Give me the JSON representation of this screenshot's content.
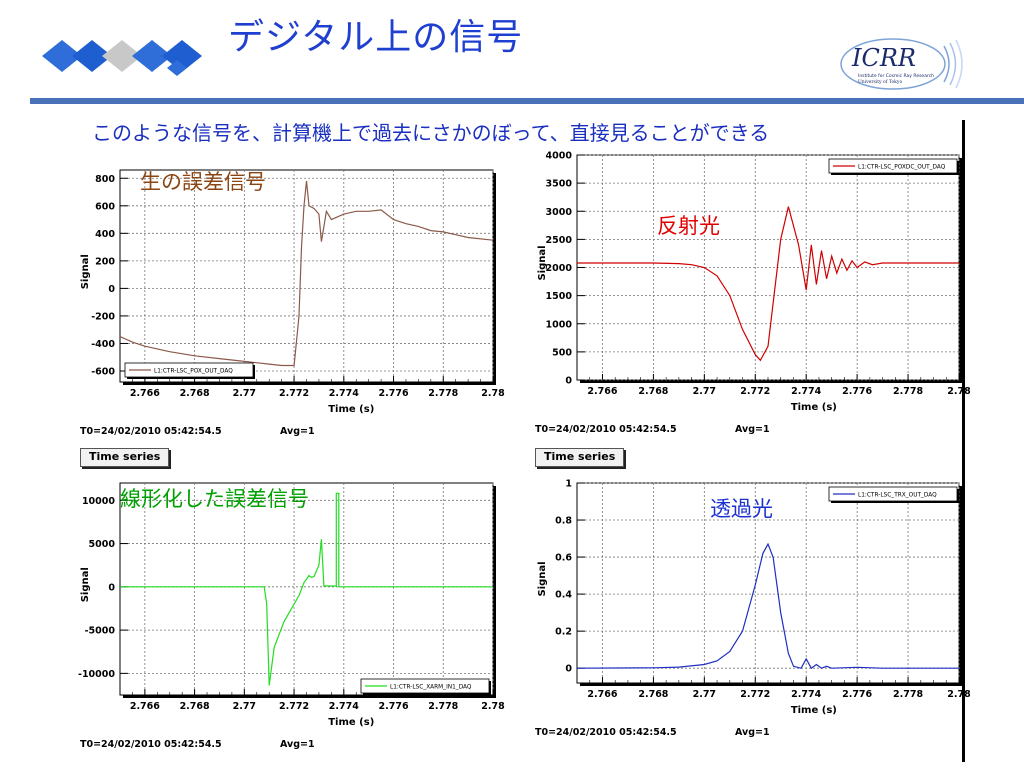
{
  "slide": {
    "title": "デジタル上の信号",
    "subtitle": "このような信号を、計算機上で過去にさかのぼって、直接見ることができる"
  },
  "logo": {
    "text": "ICRR",
    "line1": "Institute for Cosmic Ray Research",
    "line2": "University of Tokyo"
  },
  "colors": {
    "title": "#1f3fd0",
    "rule": "#4a72b8",
    "brown": "#8b5a4a",
    "red": "#d00000",
    "green": "#00cc00",
    "blue": "#2030c0"
  },
  "chart_data": [
    {
      "type": "line",
      "overlay_label": "生の誤差信号",
      "overlay_color": "#8b4513",
      "xlabel": "Time (s)",
      "ylabel": "Signal",
      "xlim": [
        2.765,
        2.78
      ],
      "ylim": [
        -680,
        860
      ],
      "x_ticks": [
        "2.766",
        "2.768",
        "2.77",
        "2.772",
        "2.774",
        "2.776",
        "2.778",
        "2.78"
      ],
      "y_ticks": [
        "800",
        "600",
        "400",
        "200",
        "0",
        "-200",
        "-400",
        "-600"
      ],
      "legend": "L1:CTR-LSC_POX_OUT_DAQ",
      "legend_position": "bottom-left",
      "grid": true,
      "footer_t0": "T0=24/02/2010 05:42:54.5",
      "footer_avg": "Avg=1",
      "series": [
        {
          "color": "#8b5a4a",
          "x": [
            2.765,
            2.7655,
            2.766,
            2.767,
            2.768,
            2.769,
            2.77,
            2.771,
            2.7715,
            2.772,
            2.7722,
            2.7723,
            2.7724,
            2.7725,
            2.7726,
            2.7728,
            2.773,
            2.7731,
            2.7733,
            2.7735,
            2.774,
            2.7745,
            2.775,
            2.7755,
            2.776,
            2.7765,
            2.777,
            2.7775,
            2.778,
            2.7785,
            2.779,
            2.78
          ],
          "y": [
            -350,
            -390,
            -420,
            -460,
            -490,
            -510,
            -530,
            -550,
            -560,
            -560,
            -200,
            300,
            600,
            780,
            600,
            580,
            540,
            340,
            560,
            500,
            540,
            560,
            560,
            570,
            500,
            470,
            450,
            420,
            410,
            390,
            370,
            350
          ]
        }
      ]
    },
    {
      "type": "line",
      "overlay_label": "反射光",
      "overlay_color": "#e00000",
      "xlabel": "Time (s)",
      "ylabel": "Signal",
      "xlim": [
        2.765,
        2.78
      ],
      "ylim": [
        0,
        4000
      ],
      "x_ticks": [
        "2.766",
        "2.768",
        "2.77",
        "2.772",
        "2.774",
        "2.776",
        "2.778",
        "2.78"
      ],
      "y_ticks": [
        "4000",
        "3500",
        "3000",
        "2500",
        "2000",
        "1500",
        "1000",
        "500",
        "0"
      ],
      "legend": "L1:CTR-LSC_POXDC_OUT_DAQ",
      "legend_position": "top-right",
      "grid": true,
      "footer_t0": "T0=24/02/2010 05:42:54.5",
      "footer_avg": "Avg=1",
      "series": [
        {
          "color": "#d00000",
          "x": [
            2.765,
            2.768,
            2.769,
            2.7695,
            2.77,
            2.7705,
            2.771,
            2.7715,
            2.772,
            2.7722,
            2.7725,
            2.773,
            2.7733,
            2.7737,
            2.774,
            2.7742,
            2.7744,
            2.7746,
            2.7748,
            2.775,
            2.7752,
            2.7754,
            2.7756,
            2.7758,
            2.776,
            2.7763,
            2.7766,
            2.777,
            2.778,
            2.779,
            2.78
          ],
          "y": [
            2080,
            2080,
            2070,
            2050,
            2000,
            1850,
            1500,
            900,
            450,
            350,
            600,
            2500,
            3080,
            2400,
            1600,
            2400,
            1700,
            2300,
            1800,
            2200,
            1900,
            2150,
            1950,
            2120,
            2000,
            2100,
            2050,
            2080,
            2080,
            2080,
            2080
          ]
        }
      ]
    },
    {
      "type": "line",
      "overlay_label": "線形化した誤差信号",
      "overlay_color": "#00a000",
      "xlabel": "Time (s)",
      "ylabel": "Signal",
      "xlim": [
        2.765,
        2.78
      ],
      "ylim": [
        -12500,
        12000
      ],
      "x_ticks": [
        "2.766",
        "2.768",
        "2.77",
        "2.772",
        "2.774",
        "2.776",
        "2.778",
        "2.78"
      ],
      "y_ticks": [
        "10000",
        "5000",
        "0",
        "-5000",
        "-10000"
      ],
      "legend": "L1:CTR-LSC_XARM_IN1_DAQ",
      "legend_position": "bottom-right",
      "grid": true,
      "footer_t0": "T0=24/02/2010 05:42:54.5",
      "footer_avg": "Avg=1",
      "series": [
        {
          "color": "#22dd22",
          "x": [
            2.765,
            2.77,
            2.7708,
            2.7709,
            2.771,
            2.7712,
            2.7716,
            2.772,
            2.7722,
            2.7724,
            2.7726,
            2.7727,
            2.7728,
            2.773,
            2.7731,
            2.7732,
            2.7733,
            2.7734,
            2.7735,
            2.7736,
            2.7737,
            2.7737,
            2.7738,
            2.7738,
            2.774,
            2.78
          ],
          "y": [
            0,
            0,
            0,
            -2000,
            -11400,
            -7000,
            -4000,
            -2000,
            -1000,
            500,
            1300,
            1100,
            1200,
            2500,
            5500,
            100,
            100,
            100,
            100,
            100,
            100,
            10800,
            10800,
            0,
            0,
            0
          ]
        }
      ]
    },
    {
      "type": "line",
      "overlay_label": "透過光",
      "overlay_color": "#1a30d0",
      "xlabel": "Time (s)",
      "ylabel": "Signal",
      "xlim": [
        2.765,
        2.78
      ],
      "ylim": [
        -0.08,
        1.0
      ],
      "x_ticks": [
        "2.766",
        "2.768",
        "2.77",
        "2.772",
        "2.774",
        "2.776",
        "2.778",
        "2.78"
      ],
      "y_ticks": [
        "1",
        "0.8",
        "0.6",
        "0.4",
        "0.2",
        "0"
      ],
      "legend": "L1:CTR-LSC_TRX_OUT_DAQ",
      "legend_position": "top-right",
      "grid": true,
      "footer_t0": "T0=24/02/2010 05:42:54.5",
      "footer_avg": "Avg=1",
      "series": [
        {
          "color": "#2030c0",
          "x": [
            2.765,
            2.768,
            2.769,
            2.77,
            2.7705,
            2.771,
            2.7715,
            2.772,
            2.7723,
            2.7725,
            2.7727,
            2.773,
            2.7733,
            2.7735,
            2.7738,
            2.774,
            2.7742,
            2.7744,
            2.7746,
            2.7748,
            2.775,
            2.776,
            2.777,
            2.778,
            2.779,
            2.78
          ],
          "y": [
            0.0,
            0.002,
            0.006,
            0.02,
            0.04,
            0.09,
            0.2,
            0.45,
            0.62,
            0.67,
            0.6,
            0.3,
            0.08,
            0.01,
            0.0,
            0.05,
            0.0,
            0.02,
            0.0,
            0.01,
            0.0,
            0.005,
            0.0,
            0.0,
            0.0,
            0.0
          ]
        }
      ]
    }
  ],
  "panels": {
    "tl": {
      "button": ""
    },
    "tr": {
      "button": ""
    },
    "bl": {
      "button": "Time series"
    },
    "br": {
      "button": "Time series"
    }
  }
}
